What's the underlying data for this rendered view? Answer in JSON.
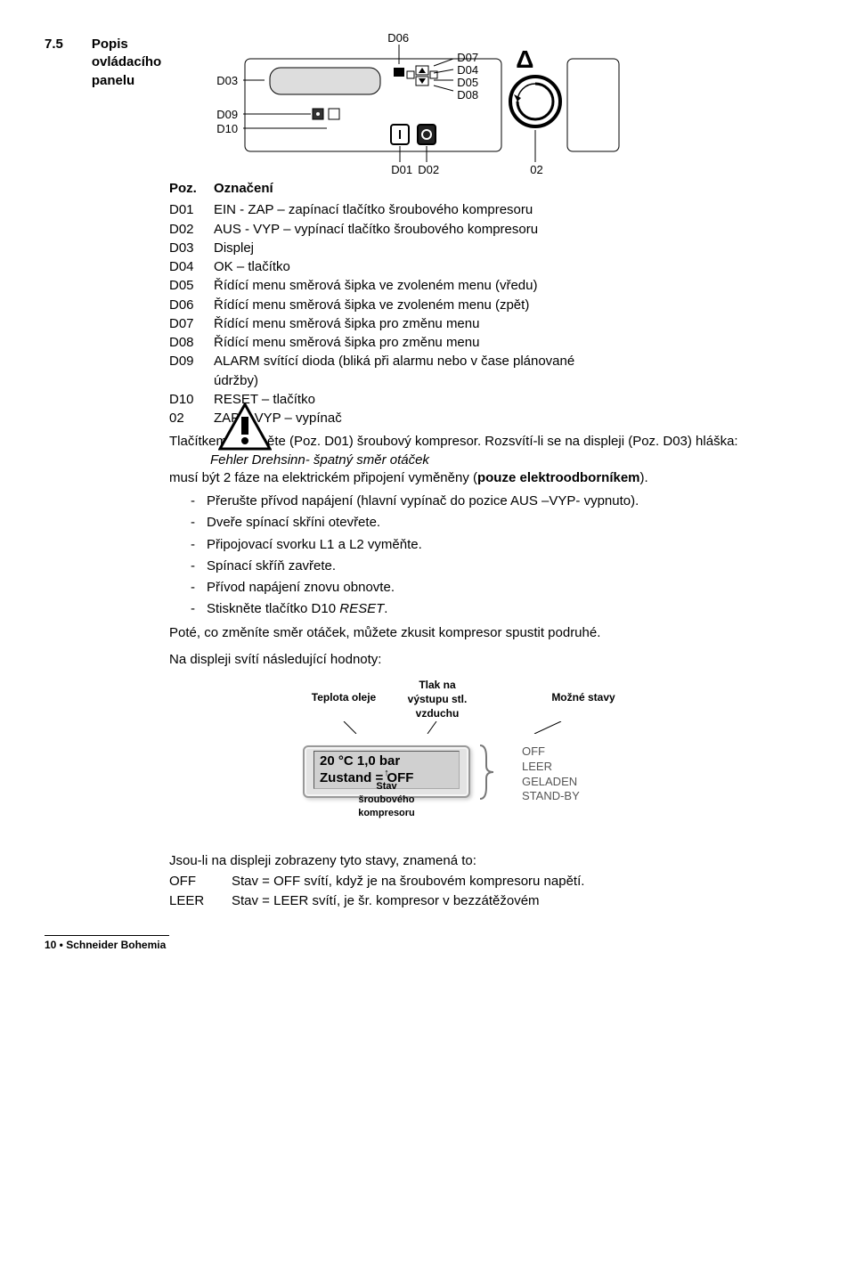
{
  "section": {
    "number": "7.5",
    "title_l1": "Popis",
    "title_l2": "ovládacího",
    "title_l3": "panelu"
  },
  "diagram": {
    "labels": {
      "D03": "D03",
      "D06": "D06",
      "D07": "D07",
      "D04": "D04",
      "D05": "D05",
      "D08": "D08",
      "D09": "D09",
      "D10": "D10",
      "D01": "D01",
      "D02": "D02",
      "O2": "02"
    },
    "delta": "Δ"
  },
  "table": {
    "head_pos": "Poz.",
    "head_desc": "Označení",
    "rows": [
      {
        "pos": "D01",
        "desc": "EIN - ZAP – zapínací tlačítko šroubového kompresoru"
      },
      {
        "pos": "D02",
        "desc": "AUS - VYP – vypínací tlačítko šroubového kompresoru"
      },
      {
        "pos": "D03",
        "desc": "Displej"
      },
      {
        "pos": "D04",
        "desc": "OK – tlačítko"
      },
      {
        "pos": "D05",
        "desc": "Řídící menu směrová šipka ve zvoleném menu (vředu)"
      },
      {
        "pos": "D06",
        "desc": "Řídící menu směrová šipka ve zvoleném menu (zpět)"
      },
      {
        "pos": "D07",
        "desc": "Řídící menu směrová šipka pro změnu menu"
      },
      {
        "pos": "D08",
        "desc": "Řídící menu směrová šipka pro změnu menu"
      },
      {
        "pos": "D09",
        "desc": "ALARM svítící dioda (bliká při alarmu nebo v čase plánované"
      },
      {
        "pos": "",
        "desc": "údržby)"
      },
      {
        "pos": "D10",
        "desc": "RESET – tlačítko"
      },
      {
        "pos": "02",
        "desc": "ZAP – VYP – vypínač"
      }
    ]
  },
  "para1_a": "Tlačítkem I zapněte (Poz. D01) šroubový kompresor. Rozsvítí-li se na displeji (Poz. D03) hláška:",
  "para1_b": "Fehler Drehsinn- špatný směr otáček",
  "para1_c_pre": "musí být 2 fáze na elektrickém připojení vyměněny (",
  "para1_c_bold": "pouze elektrood­borníkem",
  "para1_c_post": ").",
  "bullets": [
    "Přerušte přívod napájení (hlavní vypínač do pozice AUS –VYP- vypnuto).",
    "Dveře spínací skříni otevřete.",
    "Připojovací svorku L1 a L2 vyměňte.",
    "Spínací skříň zavřete.",
    "Přívod napájení znovu obnovte.",
    "Stiskněte tlačítko D10 RESET."
  ],
  "bullet5_prefix": "Stiskněte tlačítko D10 ",
  "bullet5_italic": "RESET",
  "bullet5_suffix": ".",
  "para2": "Poté, co změníte směr otáček, můžete zkusit kompresor spustit podru­hé.",
  "para3": "Na displeji svítí následující hodnoty:",
  "display": {
    "top_left": "Teplota oleje",
    "top_mid1": "Tlak na",
    "top_mid2": "výstupu stl. vzduchu",
    "top_right": "Možné stavy",
    "lcd_l1": "20 °C  1,0 bar",
    "lcd_l2": "Zustand = OFF",
    "states": [
      "OFF",
      "LEER",
      "GELADEN",
      "STAND-BY"
    ],
    "bottom_l1": "Stav",
    "bottom_l2": "šroubového kompresoru"
  },
  "para4": "Jsou-li na displeji zobrazeny tyto stavy, znamená to:",
  "states_desc": [
    {
      "k": "OFF",
      "v": "Stav = OFF svítí, když je na šroubovém kompresoru napětí."
    },
    {
      "k": "LEER",
      "v": "Stav = LEER svítí, je šr. kompresor v bezzátěžovém"
    }
  ],
  "footer": "10 • Schneider Bohemia"
}
